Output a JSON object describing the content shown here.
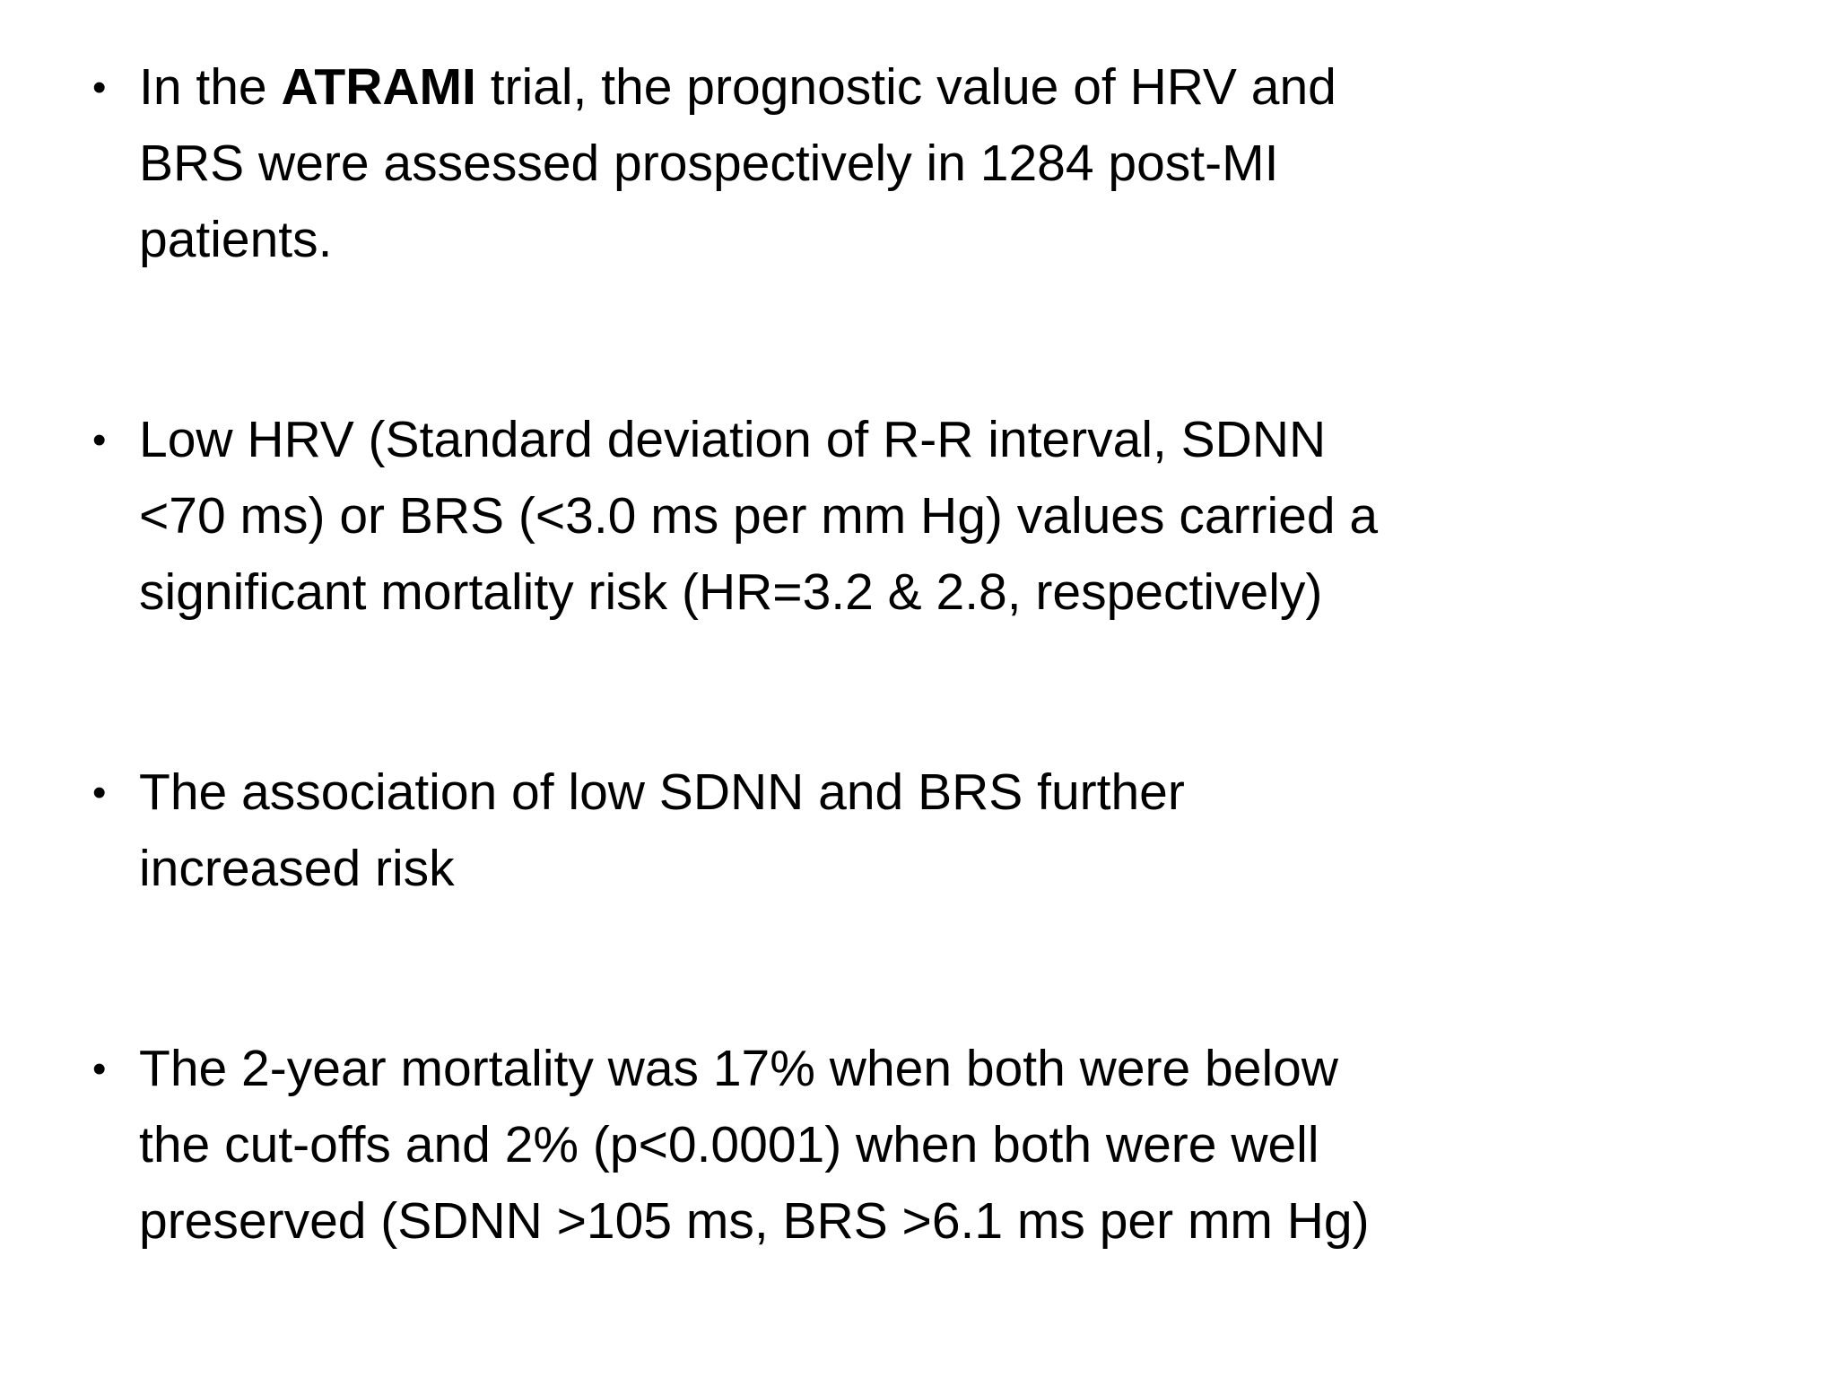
{
  "slide": {
    "background_color": "#ffffff",
    "text_color": "#000000",
    "bullet_char": "•",
    "bullets": [
      {
        "segments": [
          {
            "text": "In the ",
            "bold": false
          },
          {
            "text": "ATRAMI",
            "bold": true
          },
          {
            "text": " trial, the prognostic value of HRV and\nBRS were assessed prospectively in 1284 post-MI\npatients.",
            "bold": false
          }
        ]
      },
      {
        "segments": [
          {
            "text": "Low HRV (Standard deviation of R-R interval, SDNN\n<70 ms) or BRS (<3.0 ms per mm Hg) values carried a\nsignificant mortality risk (HR=3.2 & 2.8, respectively)",
            "bold": false
          }
        ]
      },
      {
        "segments": [
          {
            "text": "The association of low SDNN and BRS further\nincreased risk",
            "bold": false
          }
        ]
      },
      {
        "segments": [
          {
            "text": "The 2-year mortality was 17% when both were below\nthe cut-offs and 2% (p<0.0001) when both were well\npreserved (SDNN >105 ms, BRS >6.1 ms per mm Hg)",
            "bold": false
          }
        ]
      }
    ]
  }
}
